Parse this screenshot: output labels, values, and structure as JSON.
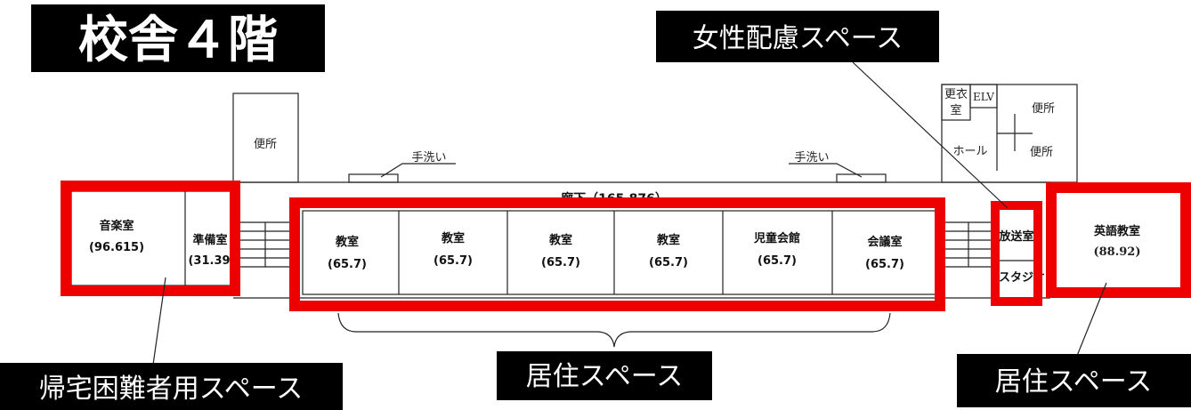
{
  "title": "校舎４階",
  "callouts": {
    "women_space": "女性配慮スペース",
    "stranded_space": "帰宅困難者用スペース",
    "living_space_center": "居住スペース",
    "living_space_right": "居住スペース"
  },
  "corridor": "廊下（165.876）",
  "toilet_left": "便所",
  "hand_wash": [
    "手洗い",
    "手洗い"
  ],
  "annex": {
    "changing_room_top": "更衣",
    "changing_room_bottom": "室",
    "elevator": "ELV",
    "toilet_top": "便所",
    "toilet_bottom": "便所",
    "hall": "ホール"
  },
  "rooms": {
    "music": {
      "name": "音楽室",
      "area": "(96.615)"
    },
    "prep": {
      "name": "準備室",
      "area": "(31.39)"
    },
    "classrooms": [
      {
        "name": "教室",
        "area": "(65.7)"
      },
      {
        "name": "教室",
        "area": "(65.7)"
      },
      {
        "name": "教室",
        "area": "(65.7)"
      },
      {
        "name": "教室",
        "area": "(65.7)"
      },
      {
        "name": "児童会館",
        "area": "(65.7)"
      },
      {
        "name": "会議室",
        "area": "(65.7)"
      }
    ],
    "broadcast": {
      "name": "放送室"
    },
    "studio": {
      "name": "スタジオ"
    },
    "english": {
      "name": "英語教室",
      "area": "(88.92)"
    }
  },
  "colors": {
    "highlight": "#ee0000",
    "callout_bg": "#000000",
    "callout_text": "#ffffff"
  }
}
